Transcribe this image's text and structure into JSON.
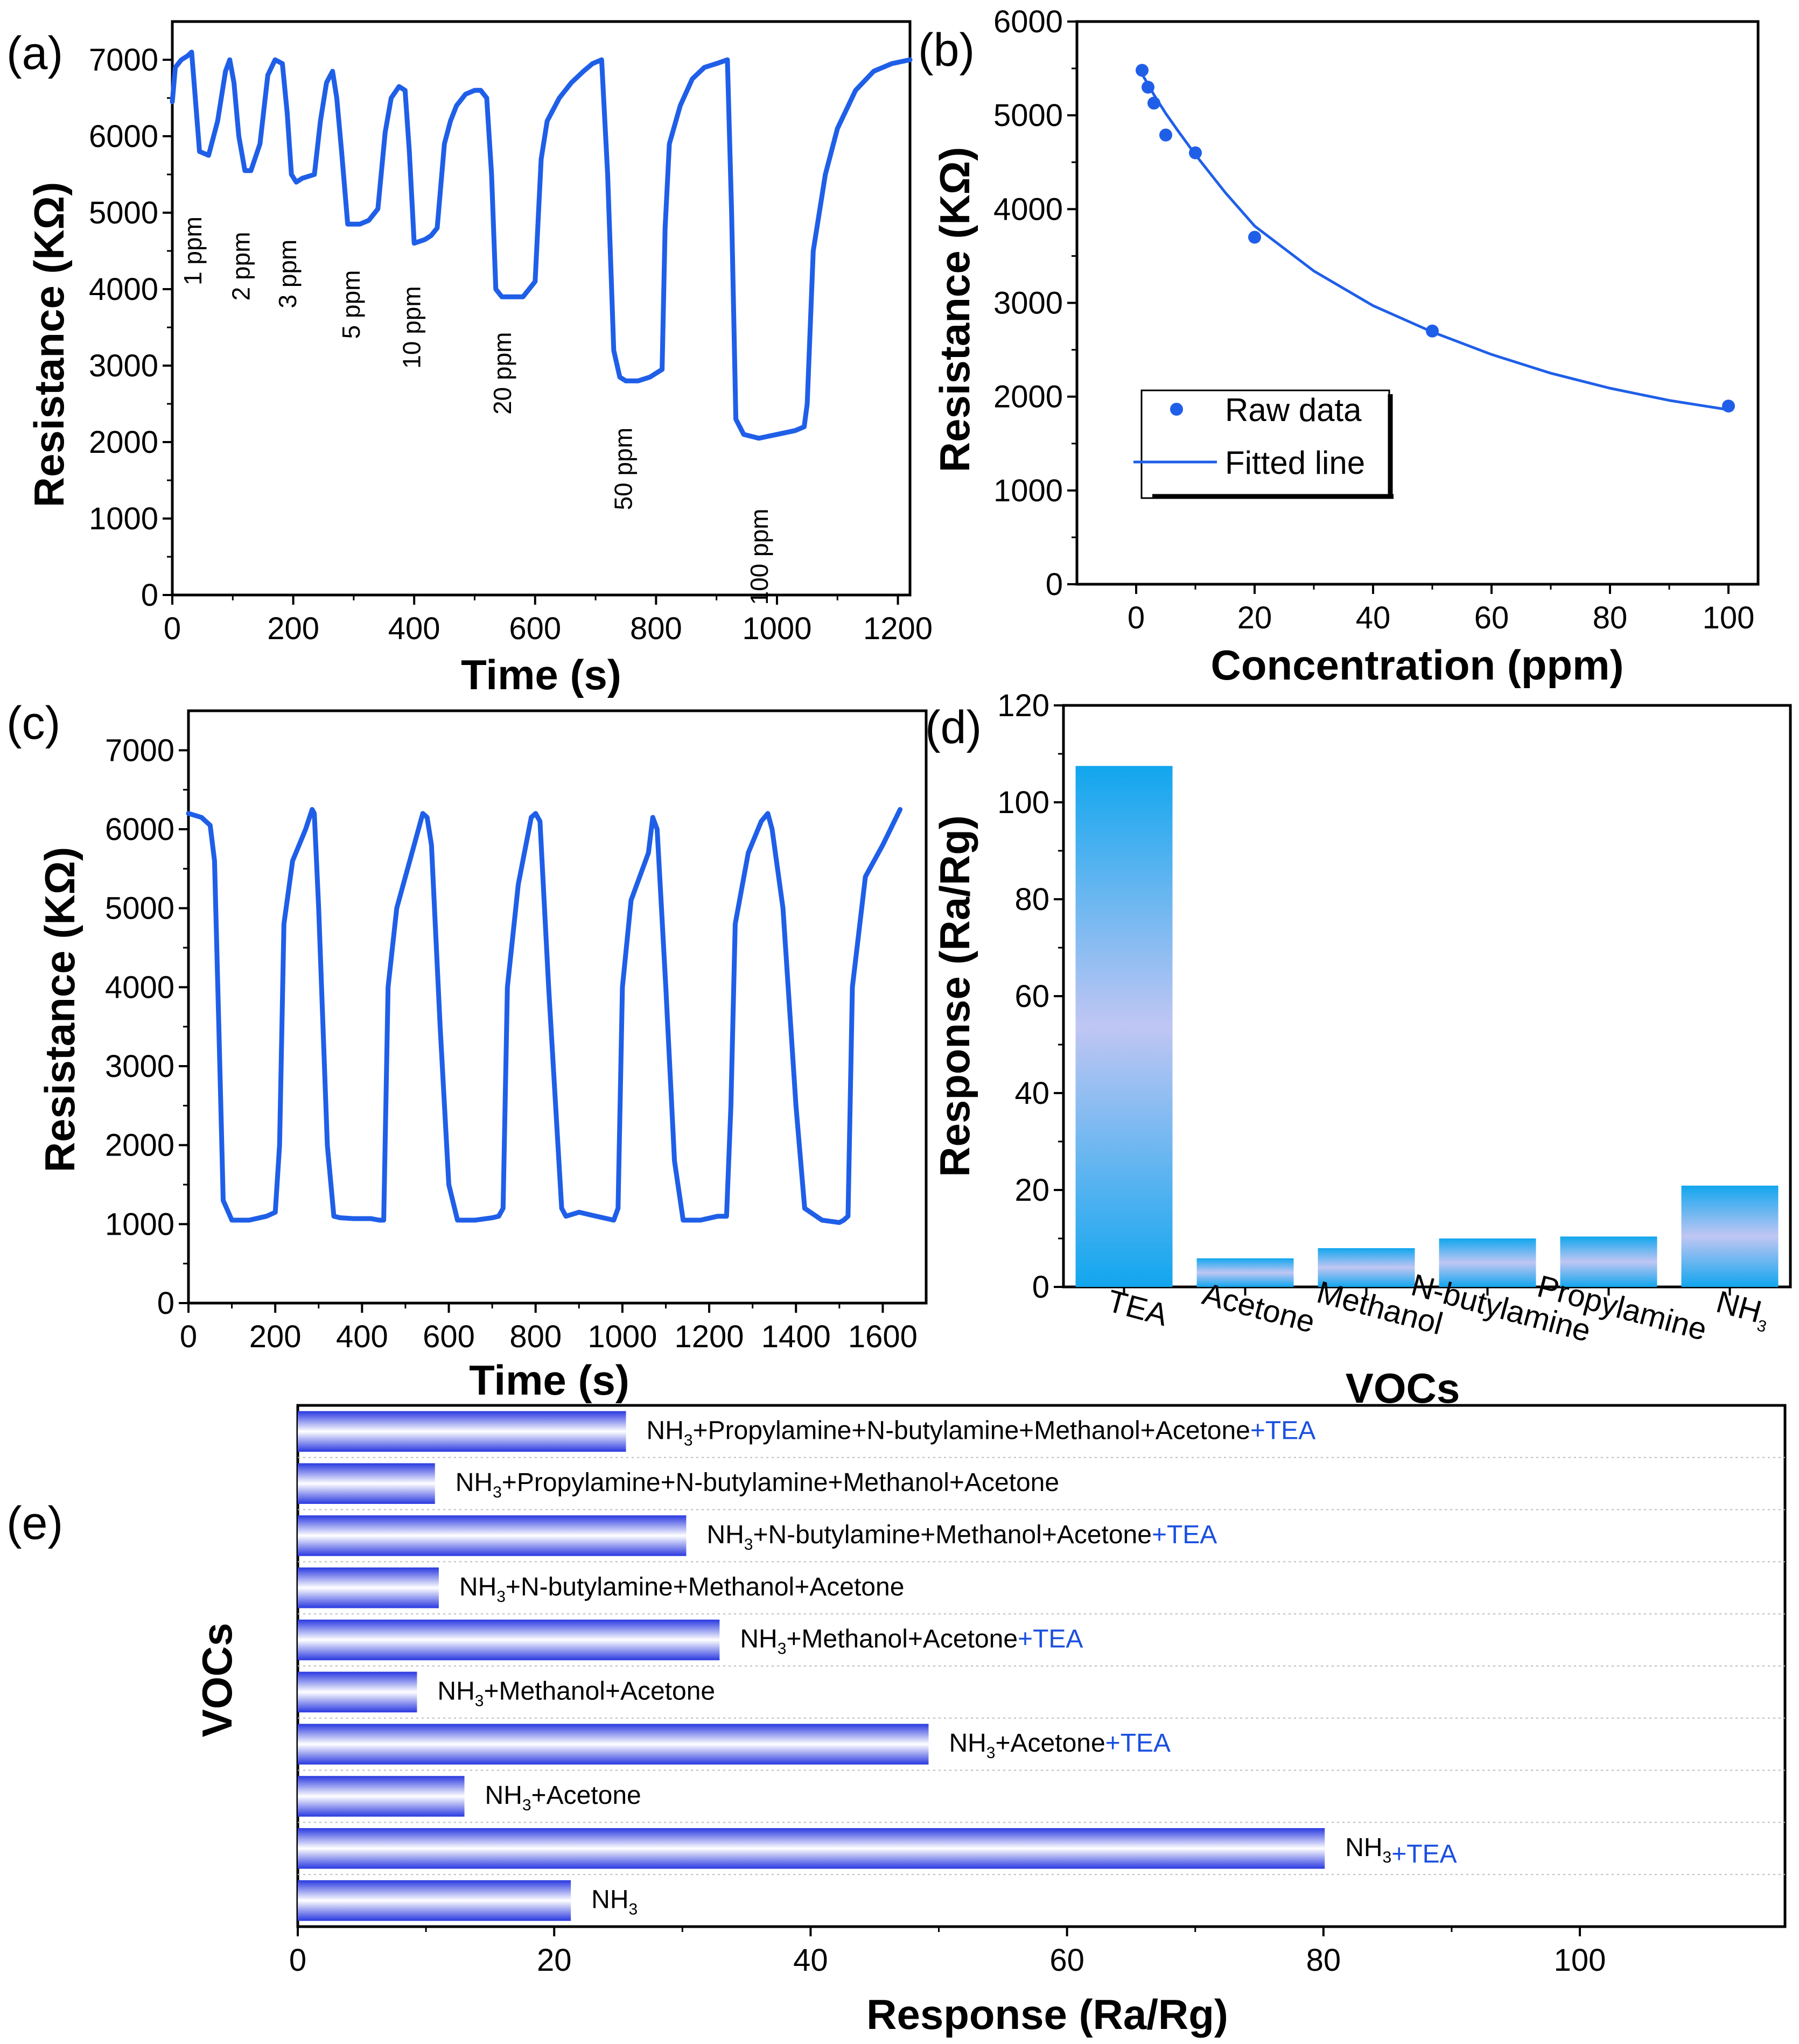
{
  "colors": {
    "line": "#1f5fe8",
    "bar_top": "#11a6ee",
    "bar_mid": "#c0c6f3",
    "hbar_edge": "#2a39e0",
    "hbar_mid": "#ffffff",
    "tea_text": "#1a4fe0"
  },
  "chart_data": [
    {
      "panel": "(a)",
      "type": "line",
      "xlabel": "Time (s)",
      "ylabel": "Resistance (KΩ)",
      "xlim": [
        0,
        1220
      ],
      "ylim": [
        0,
        7500
      ],
      "xticks": [
        "0",
        "200",
        "400",
        "600",
        "800",
        "1000",
        "1200"
      ],
      "yticks": [
        "0",
        "1000",
        "2000",
        "3000",
        "4000",
        "5000",
        "6000",
        "7000"
      ],
      "annotations": [
        {
          "text": "1 ppm",
          "x": 48,
          "y": 4500
        },
        {
          "text": "2 ppm",
          "x": 128,
          "y": 4300
        },
        {
          "text": "3 ppm",
          "x": 205,
          "y": 4200
        },
        {
          "text": "5 ppm",
          "x": 310,
          "y": 3800
        },
        {
          "text": "10 ppm",
          "x": 410,
          "y": 3500
        },
        {
          "text": "20 ppm",
          "x": 560,
          "y": 2900
        },
        {
          "text": "50 ppm",
          "x": 760,
          "y": 1650
        },
        {
          "text": "100 ppm",
          "x": 985,
          "y": 500
        }
      ],
      "x": [
        0,
        5,
        15,
        25,
        32,
        38,
        45,
        60,
        75,
        88,
        95,
        102,
        110,
        120,
        130,
        145,
        158,
        170,
        182,
        190,
        197,
        205,
        215,
        235,
        245,
        255,
        265,
        272,
        280,
        290,
        310,
        325,
        340,
        352,
        362,
        375,
        385,
        392,
        400,
        418,
        428,
        438,
        450,
        460,
        470,
        485,
        500,
        510,
        520,
        528,
        535,
        545,
        560,
        580,
        600,
        610,
        620,
        640,
        660,
        680,
        695,
        710,
        720,
        730,
        740,
        750,
        770,
        790,
        810,
        815,
        822,
        840,
        860,
        880,
        900,
        918,
        925,
        932,
        945,
        970,
        1000,
        1030,
        1045,
        1050,
        1060,
        1080,
        1100,
        1130,
        1160,
        1190,
        1220
      ],
      "y": [
        6450,
        6900,
        7000,
        7050,
        7100,
        6500,
        5800,
        5750,
        6200,
        6850,
        7000,
        6700,
        6000,
        5550,
        5550,
        5900,
        6800,
        7000,
        6950,
        6300,
        5500,
        5400,
        5450,
        5500,
        6200,
        6700,
        6850,
        6500,
        5800,
        4850,
        4850,
        4900,
        5050,
        6050,
        6500,
        6650,
        6600,
        5800,
        4600,
        4650,
        4700,
        4800,
        5900,
        6200,
        6400,
        6550,
        6600,
        6600,
        6500,
        5500,
        4000,
        3900,
        3900,
        3900,
        4100,
        5700,
        6200,
        6500,
        6700,
        6850,
        6950,
        7000,
        5500,
        3200,
        2850,
        2800,
        2800,
        2850,
        2950,
        4800,
        5900,
        6400,
        6750,
        6900,
        6950,
        7000,
        5000,
        2300,
        2100,
        2050,
        2100,
        2150,
        2200,
        2500,
        4500,
        5500,
        6100,
        6600,
        6850,
        6950,
        7000
      ]
    },
    {
      "panel": "(b)",
      "type": "scatter",
      "xlabel": "Concentration (ppm)",
      "ylabel": "Resistance (KΩ)",
      "xlim": [
        -10,
        105
      ],
      "ylim": [
        0,
        6000
      ],
      "xticks": [
        "0",
        "20",
        "40",
        "60",
        "80",
        "100"
      ],
      "yticks": [
        "0",
        "1000",
        "2000",
        "3000",
        "4000",
        "5000",
        "6000"
      ],
      "legend": [
        "Raw data",
        "Fitted line"
      ],
      "series": [
        {
          "name": "Raw data",
          "x": [
            1,
            2,
            3,
            5,
            10,
            20,
            50,
            100
          ],
          "y": [
            5480,
            5300,
            5130,
            4790,
            4600,
            3700,
            2700,
            1900
          ]
        },
        {
          "name": "Fitted line",
          "x": [
            1,
            2,
            3,
            5,
            7,
            10,
            15,
            20,
            30,
            40,
            50,
            60,
            70,
            80,
            90,
            100
          ],
          "y": [
            5440,
            5330,
            5220,
            5020,
            4840,
            4580,
            4180,
            3820,
            3340,
            2970,
            2690,
            2450,
            2250,
            2090,
            1960,
            1860
          ]
        }
      ]
    },
    {
      "panel": "(c)",
      "type": "line",
      "xlabel": "Time (s)",
      "ylabel": "Resistance (KΩ)",
      "xlim": [
        0,
        1700
      ],
      "ylim": [
        0,
        7500
      ],
      "xticks": [
        "0",
        "200",
        "400",
        "600",
        "800",
        "1000",
        "1200",
        "1400",
        "1600"
      ],
      "yticks": [
        "0",
        "1000",
        "2000",
        "3000",
        "4000",
        "5000",
        "6000",
        "7000"
      ],
      "x": [
        0,
        30,
        50,
        60,
        70,
        80,
        100,
        140,
        180,
        200,
        210,
        220,
        240,
        270,
        285,
        290,
        300,
        320,
        335,
        350,
        380,
        420,
        440,
        450,
        460,
        480,
        520,
        540,
        550,
        560,
        580,
        600,
        620,
        660,
        700,
        715,
        725,
        735,
        760,
        790,
        800,
        810,
        830,
        860,
        870,
        900,
        940,
        980,
        990,
        1000,
        1020,
        1060,
        1070,
        1080,
        1100,
        1120,
        1140,
        1180,
        1220,
        1240,
        1250,
        1260,
        1290,
        1320,
        1335,
        1345,
        1370,
        1400,
        1420,
        1460,
        1500,
        1510,
        1520,
        1530,
        1560,
        1600,
        1640
      ],
      "y": [
        6200,
        6150,
        6050,
        5600,
        3500,
        1300,
        1050,
        1050,
        1100,
        1150,
        2000,
        4800,
        5600,
        6000,
        6250,
        6200,
        5000,
        2000,
        1100,
        1080,
        1070,
        1070,
        1050,
        1050,
        4000,
        5000,
        5800,
        6200,
        6150,
        5800,
        3500,
        1500,
        1050,
        1050,
        1080,
        1100,
        1200,
        4000,
        5300,
        6150,
        6200,
        6100,
        4000,
        1200,
        1100,
        1150,
        1100,
        1050,
        1200,
        4000,
        5100,
        5700,
        6150,
        6000,
        4000,
        1800,
        1050,
        1050,
        1100,
        1100,
        2500,
        4800,
        5700,
        6100,
        6200,
        6000,
        5000,
        2500,
        1200,
        1050,
        1020,
        1050,
        1100,
        4000,
        5400,
        5800,
        6250
      ]
    },
    {
      "panel": "(d)",
      "type": "bar",
      "xlabel": "VOCs",
      "ylabel": "Response (Ra/Rg)",
      "ylim": [
        0,
        120
      ],
      "yticks": [
        "0",
        "20",
        "40",
        "60",
        "80",
        "100",
        "120"
      ],
      "categories": [
        "TEA",
        "Acetone",
        "Methanol",
        "N-butylamine",
        "Propylamine",
        "NH"
      ],
      "category_subscript": [
        "",
        "",
        "",
        "",
        "",
        "3"
      ],
      "values": [
        107.5,
        5.9,
        8.0,
        10.0,
        10.4,
        20.9
      ]
    },
    {
      "panel": "(e)",
      "type": "bar",
      "orientation": "horizontal",
      "xlabel": "Response (Ra/Rg)",
      "ylabel": "VOCs",
      "xlim": [
        0,
        116
      ],
      "xticks": [
        "0",
        "20",
        "40",
        "60",
        "80",
        "100"
      ],
      "bars": [
        {
          "parts": [
            "NH",
            "3",
            "+Propylamine+N-butylamine+Methanol+Acetone",
            "+TEA"
          ],
          "value": 25.6
        },
        {
          "parts": [
            "NH",
            "3",
            "+Propylamine+N-butylamine+Methanol+Acetone",
            ""
          ],
          "value": 10.7
        },
        {
          "parts": [
            "NH",
            "3",
            "+N-butylamine+Methanol+Acetone",
            "+TEA"
          ],
          "value": 30.3
        },
        {
          "parts": [
            "NH",
            "3",
            "+N-butylamine+Methanol+Acetone",
            ""
          ],
          "value": 11.0
        },
        {
          "parts": [
            "NH",
            "3",
            "+Methanol+Acetone",
            "+TEA"
          ],
          "value": 32.9
        },
        {
          "parts": [
            "NH",
            "3",
            "+Methanol+Acetone",
            ""
          ],
          "value": 9.3
        },
        {
          "parts": [
            "NH",
            "3",
            "+Acetone",
            "+TEA"
          ],
          "value": 49.2
        },
        {
          "parts": [
            "NH",
            "3",
            "+Acetone",
            ""
          ],
          "value": 13.0
        },
        {
          "parts": [
            "NH",
            "3",
            "",
            "+TEA"
          ],
          "value": 80.1
        },
        {
          "parts": [
            "NH",
            "3",
            "",
            ""
          ],
          "value": 21.3
        }
      ]
    }
  ]
}
